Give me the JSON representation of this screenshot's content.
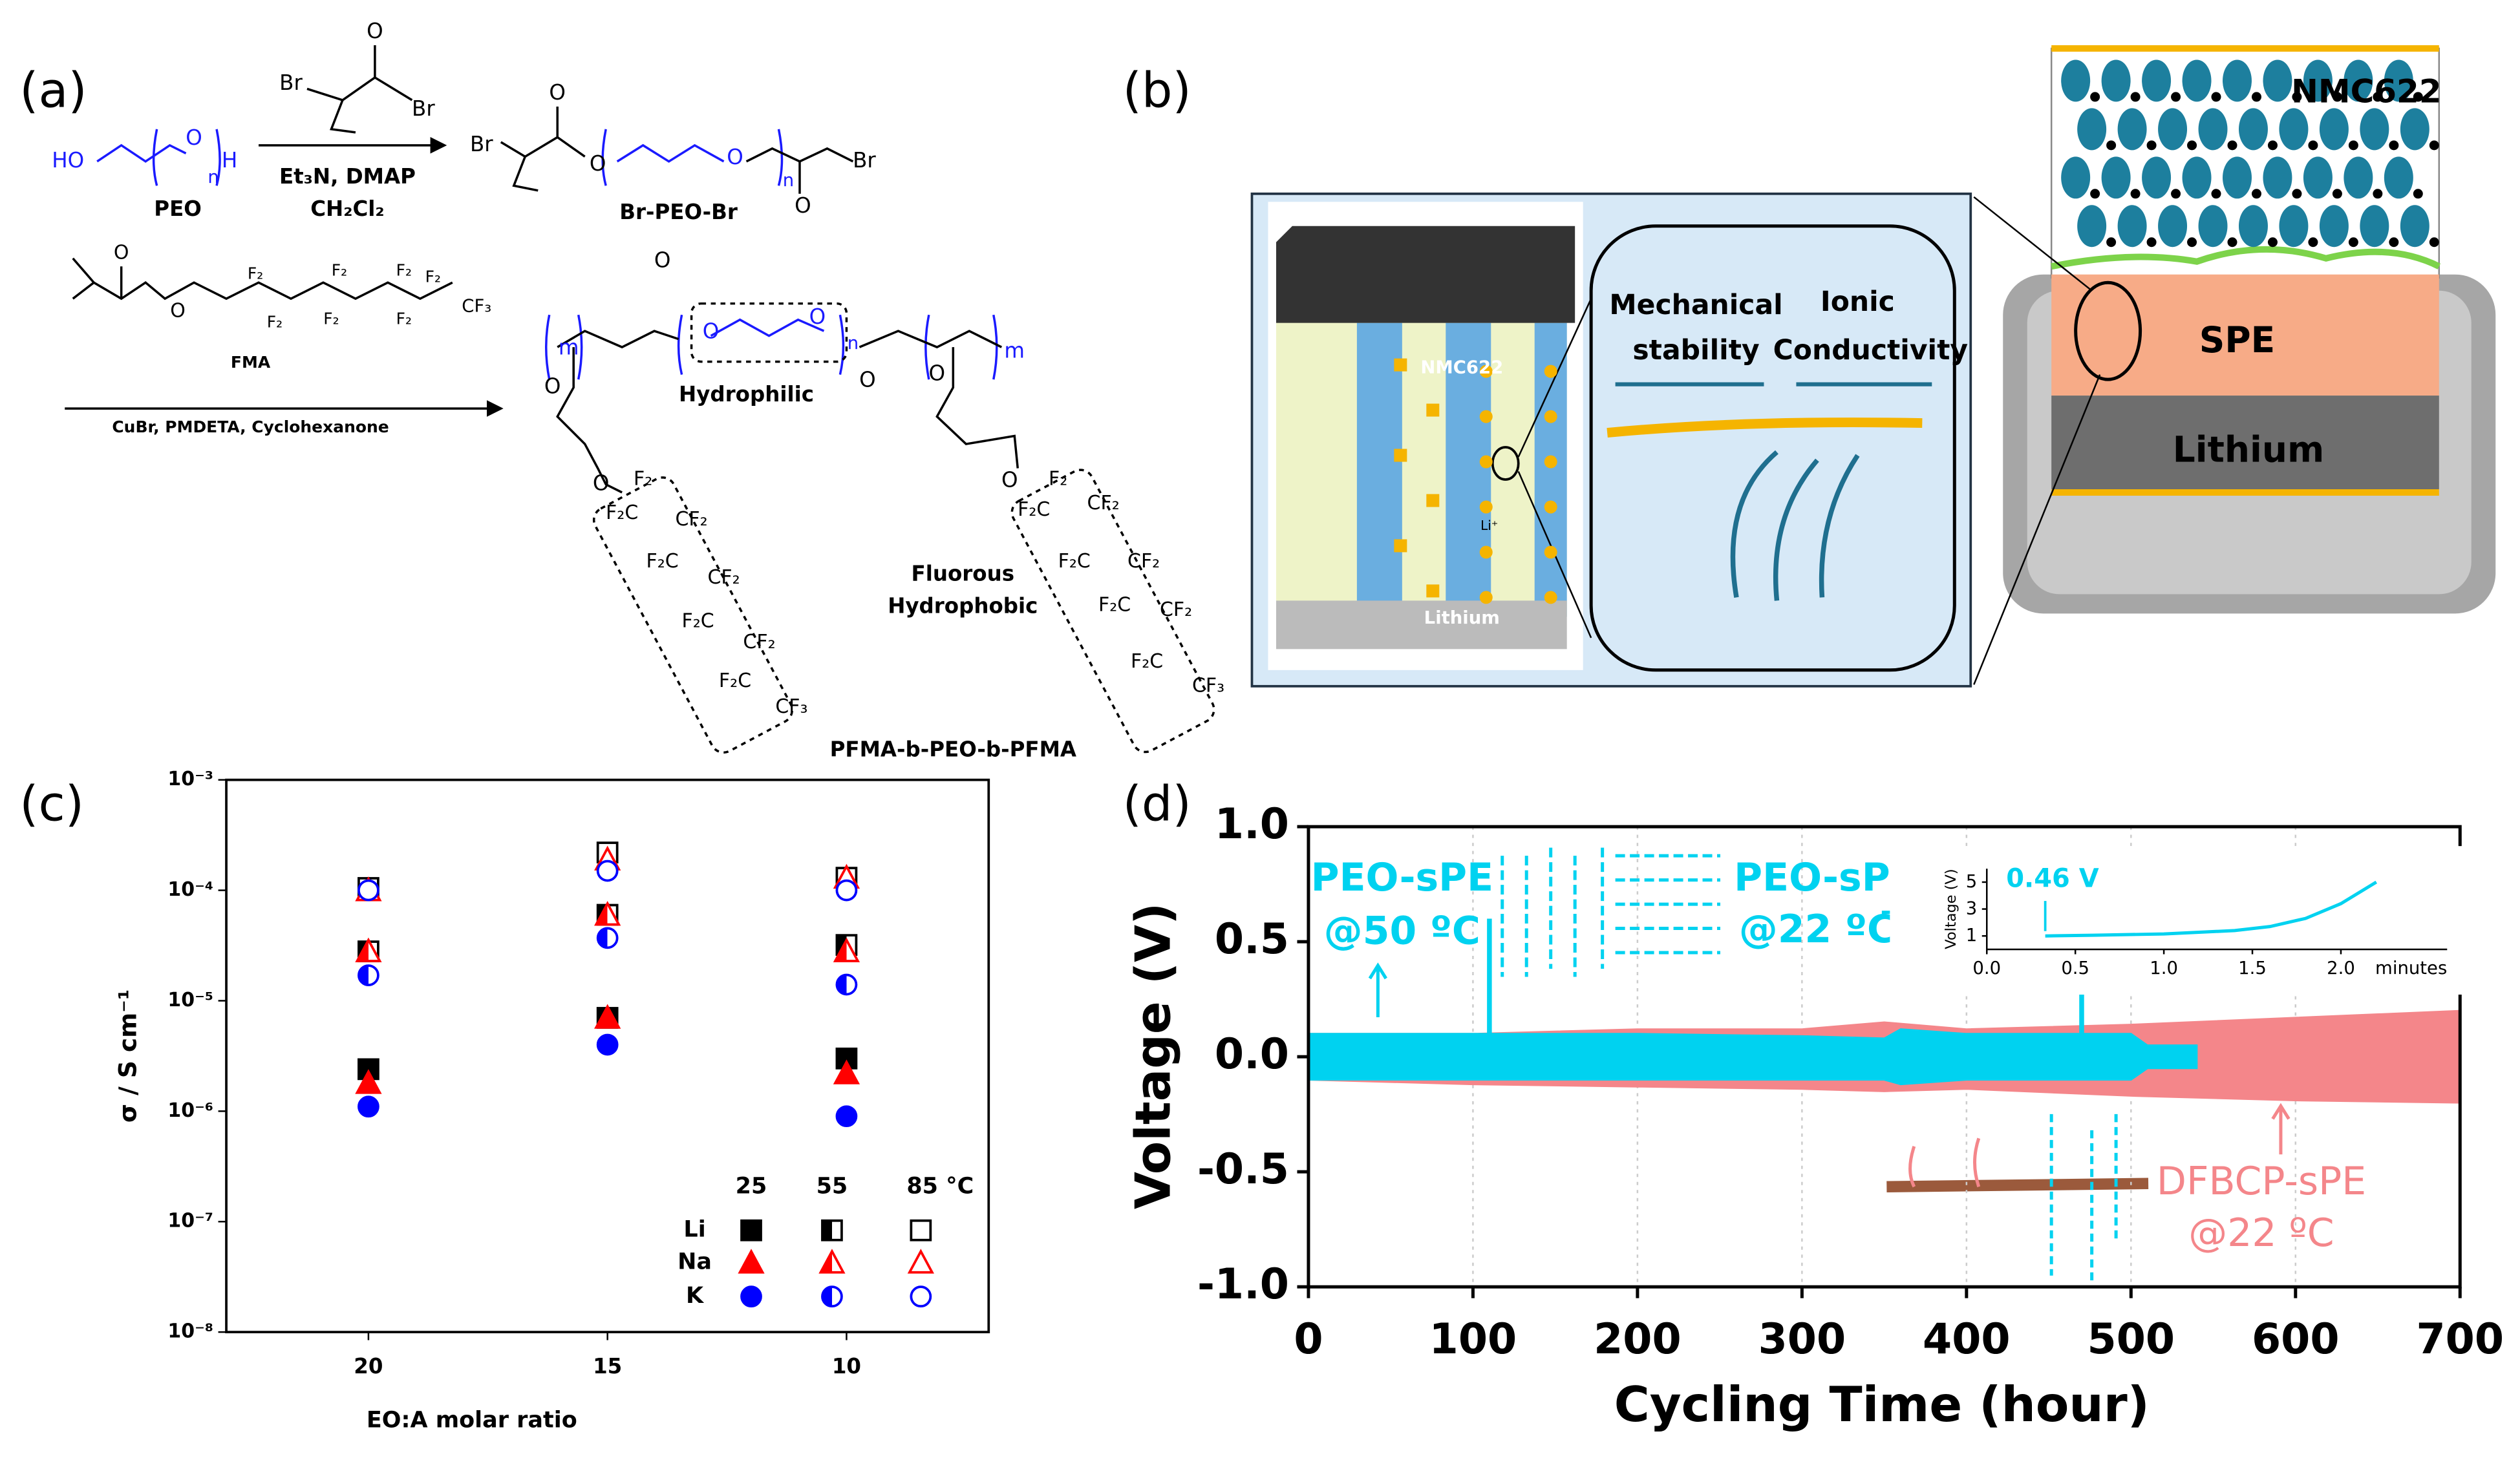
{
  "figure": {
    "panel_labels": [
      "(a)",
      "(b)",
      "(c)",
      "(d)"
    ],
    "scheme_a": {
      "labels": [
        "HO",
        "O",
        "n",
        "H",
        "PEO",
        "Br",
        "O",
        "Br",
        "Et₃N, DMAP",
        "CH₂Cl₂",
        "Br",
        "O",
        "O",
        "O",
        "n",
        "O",
        "Br",
        "Br-PEO-Br",
        "O",
        "O",
        "F₂",
        "F₂",
        "F₂",
        "F₂",
        "F₂",
        "F₂",
        "F₂",
        "CF₃",
        "FMA",
        "CuBr, PMDETA, Cyclohexanone",
        "m",
        "O",
        "O",
        "O",
        "n",
        "O",
        "m",
        "O",
        "O",
        "O",
        "O",
        "Hydrophilic",
        "Fluorous",
        "Hydrophobic",
        "PFMA-b-PEO-b-PFMA",
        "F₂",
        "F₂C",
        "CF₂",
        "F₂C",
        "CF₂",
        "F₂C",
        "CF₂",
        "F₂C",
        "CF₃",
        "F₂",
        "F₂C",
        "CF₂",
        "F₂C",
        "CF₂",
        "F₂C",
        "CF₂",
        "F₂C",
        "CF₃"
      ]
    },
    "diagram_b": {
      "labels": [
        "NMC622",
        "SPE",
        "Lithium",
        "NMC622",
        "Lithium",
        "Li⁺",
        "Mechanical",
        "stability",
        "Ionic",
        "Conductivity"
      ]
    }
  },
  "chart_data": [
    {
      "type": "scatter",
      "x_label": "EO:A molar ratio",
      "y_label": "σ / S cm⁻¹",
      "log_y": true,
      "categories": [
        "20",
        "15",
        "10"
      ],
      "ylim": [
        1e-08,
        0.001
      ],
      "yticks": [
        {
          "value": 1e-08,
          "label": "10⁻⁸"
        },
        {
          "value": 1e-07,
          "label": "10⁻⁷"
        },
        {
          "value": 1e-06,
          "label": "10⁻⁶"
        },
        {
          "value": 1e-05,
          "label": "10⁻⁵"
        },
        {
          "value": 0.0001,
          "label": "10⁻⁴"
        },
        {
          "value": 0.001,
          "label": "10⁻³"
        }
      ],
      "temperature_labels": [
        "25",
        "55",
        "85 °C"
      ],
      "fills": [
        "full",
        "half",
        "open"
      ],
      "series": [
        {
          "name": "Li",
          "color": "#000000",
          "marker": "square",
          "values": [
            [
              2.4e-06,
              7e-06,
              3e-06
            ],
            [
              2.8e-05,
              6e-05,
              3.2e-05
            ],
            [
              0.000105,
              0.00022,
              0.00013
            ]
          ]
        },
        {
          "name": "Na",
          "color": "#ff0000",
          "marker": "triangle",
          "values": [
            [
              1.8e-06,
              7e-06,
              2.2e-06
            ],
            [
              2.8e-05,
              6e-05,
              2.8e-05
            ],
            [
              0.0001,
              0.00019,
              0.00013
            ]
          ]
        },
        {
          "name": "K",
          "color": "#0000ff",
          "marker": "circle",
          "values": [
            [
              1.1e-06,
              4e-06,
              9e-07
            ],
            [
              1.7e-05,
              3.7e-05,
              1.4e-05
            ],
            [
              0.0001,
              0.00015,
              0.0001
            ]
          ]
        }
      ]
    },
    {
      "type": "band",
      "x_label": "Cycling Time (hour)",
      "y_label": "Voltage (V)",
      "grid": true,
      "xlim": [
        0,
        700
      ],
      "xticks": [
        0,
        100,
        200,
        300,
        400,
        500,
        600,
        700
      ],
      "ylim": [
        -1,
        1
      ],
      "yticks": [
        {
          "value": -1,
          "label": "-1.0"
        },
        -0.5,
        {
          "value": 0,
          "label": "0.0"
        },
        0.5,
        {
          "value": 1,
          "label": "1.0"
        }
      ],
      "series": [
        {
          "color": "#f4868a",
          "x": [
            0,
            100,
            200,
            300,
            350,
            400,
            500,
            600,
            700
          ],
          "upper": [
            0.1,
            0.1,
            0.12,
            0.12,
            0.15,
            0.12,
            0.14,
            0.17,
            0.2
          ],
          "lower": [
            -0.1,
            -0.12,
            -0.13,
            -0.14,
            -0.15,
            -0.14,
            -0.17,
            -0.19,
            -0.2
          ]
        },
        {
          "color": "#00d2f0",
          "x": [
            0,
            100,
            200,
            300,
            350,
            360,
            400,
            500,
            510,
            540
          ],
          "upper": [
            0.1,
            0.1,
            0.1,
            0.09,
            0.08,
            0.12,
            0.1,
            0.1,
            0.05,
            0.05
          ],
          "lower": [
            -0.1,
            -0.1,
            -0.1,
            -0.1,
            -0.1,
            -0.12,
            -0.1,
            -0.1,
            -0.05,
            -0.05
          ],
          "spike_x": [
            110,
            470
          ],
          "spike_values": [
            0.6,
            0.28
          ]
        }
      ],
      "annotations": [
        "PEO-sPE",
        "@50 ºC",
        "PEO-sPE",
        "@22 ºC",
        "DFBCP-sPE",
        "@22 ºC"
      ]
    },
    {
      "type": "line",
      "y_label": "Voltage (V)",
      "x_unit": "minutes",
      "annotation": "0.46 V",
      "color": "#00d2f0",
      "xlim": [
        0,
        2.6
      ],
      "xticks": [
        {
          "value": 0,
          "label": "0.0"
        },
        0.5,
        {
          "value": 1,
          "label": "1.0"
        },
        1.5,
        {
          "value": 2,
          "label": "2.0"
        }
      ],
      "ylim": [
        0,
        6
      ],
      "yticks": [
        1,
        3,
        5
      ],
      "x": [
        0.33,
        0.6,
        1.0,
        1.4,
        1.6,
        1.8,
        2.0,
        2.2
      ],
      "values": [
        1.0,
        1.05,
        1.15,
        1.4,
        1.7,
        2.3,
        3.4,
        5.0
      ]
    }
  ]
}
